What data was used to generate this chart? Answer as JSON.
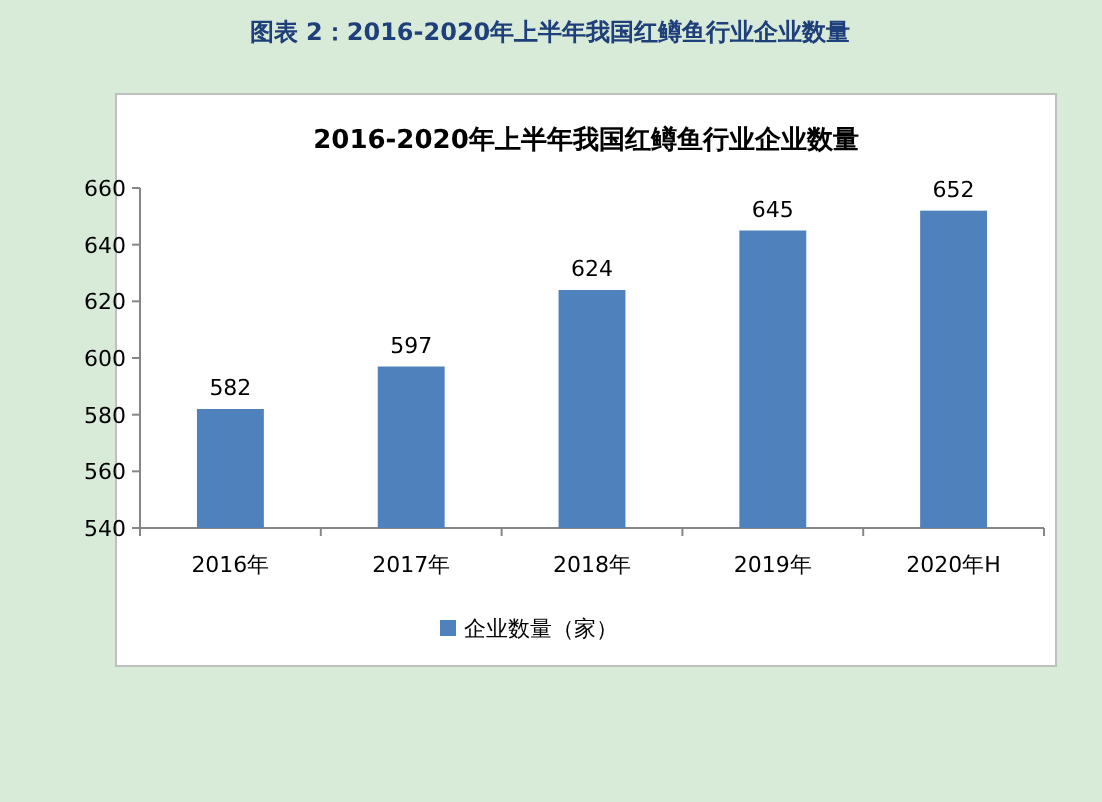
{
  "chart_data": {
    "type": "bar",
    "title": "2016-2020年上半年我国红鳟鱼行业企业数量",
    "categories": [
      "2016年",
      "2017年",
      "2018年",
      "2019年",
      "2020年H"
    ],
    "series": [
      {
        "name": "企业数量（家）",
        "color": "#4f81bd",
        "values": [
          582,
          597,
          624,
          645,
          652
        ]
      }
    ],
    "ylim": [
      540,
      660
    ],
    "yticks": [
      540,
      560,
      580,
      600,
      620,
      640,
      660
    ],
    "data_labels": true,
    "legend": "bottom",
    "grid": false,
    "annotations": [
      "图表 2：2016-2020年上半年我国红鳟鱼行业企业数量"
    ]
  }
}
